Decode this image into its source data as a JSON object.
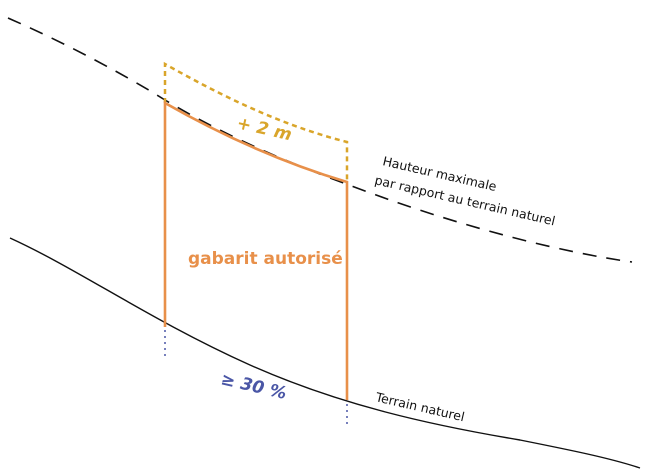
{
  "labels": {
    "extra_height": "+ 2 m",
    "max_height_line1": "Hauteur maximale",
    "max_height_line2": "par rapport au terrain naturel",
    "allowed_envelope": "gabarit autorisé",
    "slope": "≥ 30 %",
    "natural_ground": "Terrain naturel"
  },
  "colors": {
    "envelope": "#E8904A",
    "bonus": "#D9A52A",
    "slope_text": "#4A56A6",
    "lines": "#111111",
    "dotted_marker": "#4A56A6"
  }
}
